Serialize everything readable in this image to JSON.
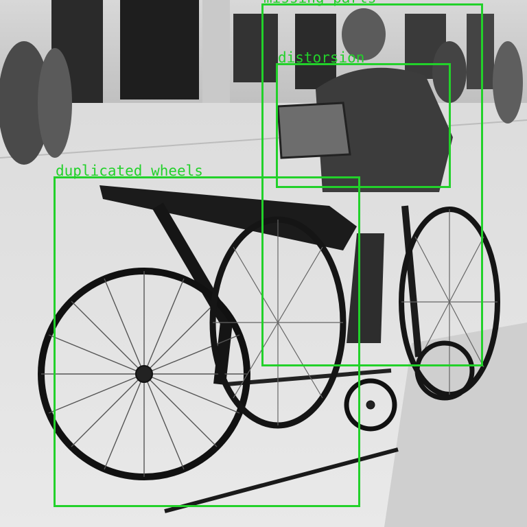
{
  "image": {
    "style": "grayscale",
    "palette": {
      "label_color": "#22d12a"
    }
  },
  "annotations": [
    {
      "label": "missing parts"
    },
    {
      "label": "distorsion"
    },
    {
      "label": "duplicated wheels"
    }
  ]
}
